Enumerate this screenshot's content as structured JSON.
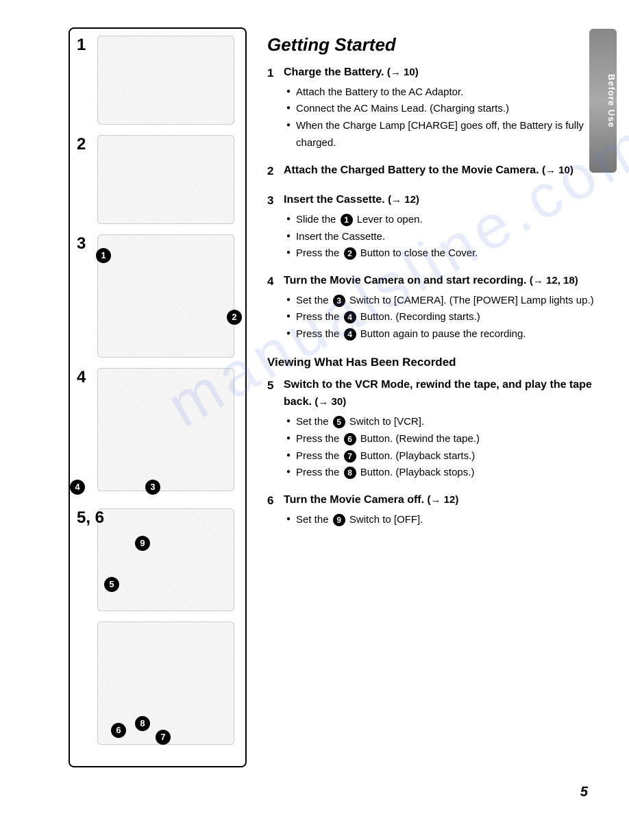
{
  "sideTab": "Before Use",
  "heading": "Getting Started",
  "steps": [
    {
      "num": "1",
      "title": "Charge the Battery.",
      "ref": "(→ 10)",
      "bullets": [
        {
          "text": "Attach the Battery to the AC Adaptor."
        },
        {
          "text": "Connect the AC Mains Lead. (Charging starts.)"
        },
        {
          "text": "When the Charge Lamp [CHARGE] goes off, the Battery is fully charged."
        }
      ]
    },
    {
      "num": "2",
      "title": "Attach the Charged Battery to the Movie Camera.",
      "ref": "(→ 10)",
      "bullets": []
    },
    {
      "num": "3",
      "title": "Insert the Cassette.",
      "ref": "(→ 12)",
      "bullets": [
        {
          "pre": "Slide the ",
          "circle": "1",
          "post": " Lever to open."
        },
        {
          "text": "Insert the Cassette."
        },
        {
          "pre": "Press the ",
          "circle": "2",
          "post": " Button to close the Cover."
        }
      ]
    },
    {
      "num": "4",
      "title": "Turn the Movie Camera on and start recording.",
      "ref": "(→ 12, 18)",
      "bullets": [
        {
          "pre": "Set the ",
          "circle": "3",
          "post": " Switch to [CAMERA]. (The [POWER] Lamp lights up.)"
        },
        {
          "pre": "Press the ",
          "circle": "4",
          "post": " Button. (Recording starts.)"
        },
        {
          "pre": "Press the ",
          "circle": "4",
          "post": " Button again to pause the recording."
        }
      ]
    }
  ],
  "subheading": "Viewing What Has Been Recorded",
  "steps2": [
    {
      "num": "5",
      "title": "Switch to the VCR Mode, rewind the tape, and play the tape back.",
      "ref": "(→ 30)",
      "bullets": [
        {
          "pre": "Set the ",
          "circle": "5",
          "post": " Switch to [VCR]."
        },
        {
          "pre": "Press the ",
          "circle": "6",
          "post": " Button. (Rewind the tape.)"
        },
        {
          "pre": "Press the ",
          "circle": "7",
          "post": " Button. (Playback starts.)"
        },
        {
          "pre": "Press the ",
          "circle": "8",
          "post": " Button. (Playback stops.)"
        }
      ]
    },
    {
      "num": "6",
      "title": "Turn the Movie Camera off.",
      "ref": "(→ 12)",
      "bullets": [
        {
          "pre": "Set the ",
          "circle": "9",
          "post": " Switch to [OFF]."
        }
      ]
    }
  ],
  "diagramNums": [
    "1",
    "2",
    "3",
    "4",
    "5, 6"
  ],
  "diagramBadges": {
    "d3": [
      "1",
      "2"
    ],
    "d4": [
      "3",
      "4"
    ],
    "d5": [
      "5",
      "9"
    ],
    "d6": [
      "6",
      "7",
      "8"
    ]
  },
  "pageNum": "5",
  "watermark": "manualsline.com"
}
